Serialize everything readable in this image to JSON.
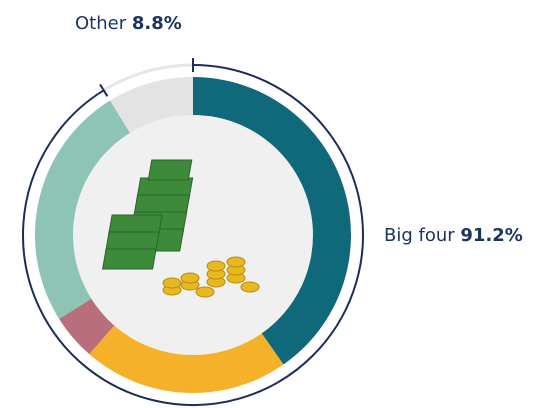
{
  "chart_data": {
    "type": "donut",
    "values": [
      40.3,
      21.1,
      4.7,
      25.1,
      8.8
    ],
    "colors": [
      "#10697a",
      "#f6b12a",
      "#b86e7d",
      "#8ec4b5",
      "#e3e3e3"
    ],
    "groups": [
      {
        "name": "Big four",
        "value": 91.2,
        "value_label": "91.2%",
        "color": "#1c2c5e"
      },
      {
        "name": "Other",
        "value": 8.8,
        "value_label": "8.8%",
        "color": "#e6e6e6"
      }
    ]
  }
}
